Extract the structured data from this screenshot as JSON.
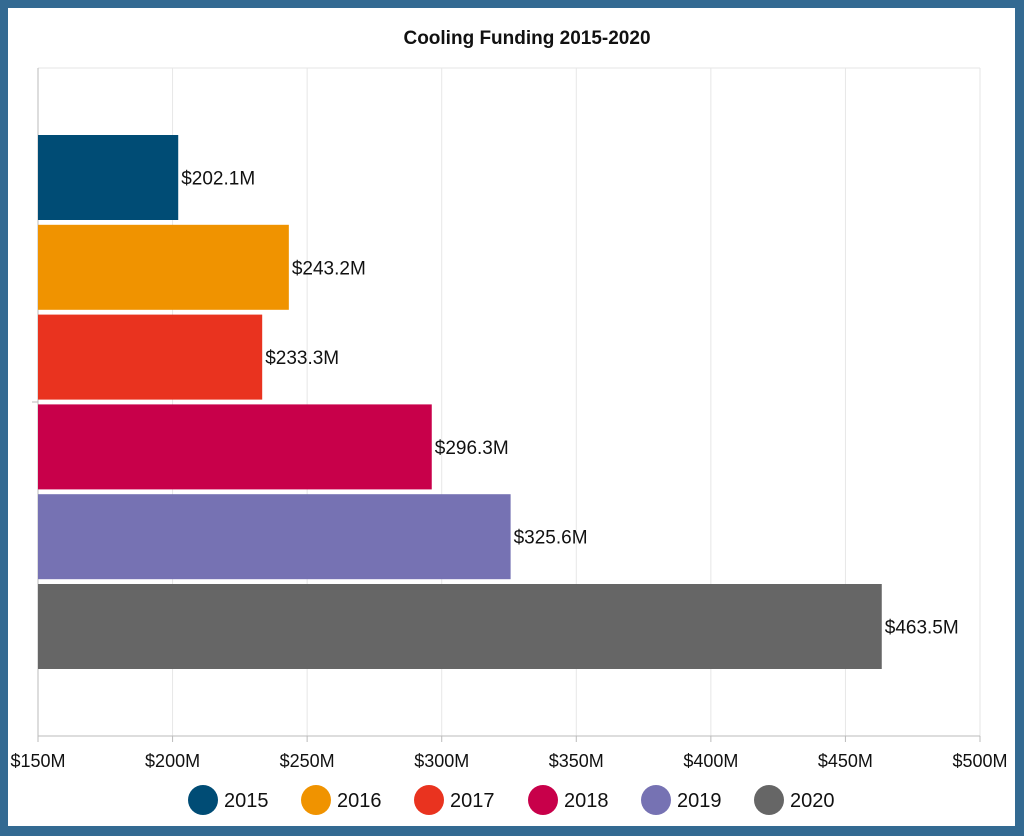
{
  "chart_data": {
    "type": "bar",
    "orientation": "horizontal",
    "title": "Cooling Funding 2015-2020",
    "categories": [
      "2015",
      "2016",
      "2017",
      "2018",
      "2019",
      "2020"
    ],
    "values": [
      202.1,
      243.2,
      233.3,
      296.3,
      325.6,
      463.5
    ],
    "data_labels": [
      "$202.1M",
      "$243.2M",
      "$233.3M",
      "$296.3M",
      "$325.6M",
      "$463.5M"
    ],
    "colors": [
      "#004c75",
      "#f09300",
      "#e9331f",
      "#c8004a",
      "#7672b3",
      "#666666"
    ],
    "xlim": [
      150,
      500
    ],
    "xticks": [
      150,
      200,
      250,
      300,
      350,
      400,
      450,
      500
    ],
    "xtick_labels": [
      "$150M",
      "$200M",
      "$250M",
      "$300M",
      "$350M",
      "$400M",
      "$450M",
      "$500M"
    ],
    "xlabel": "",
    "ylabel": "",
    "grid": true,
    "legend": {
      "placement": "bottom",
      "entries": [
        "2015",
        "2016",
        "2017",
        "2018",
        "2019",
        "2020"
      ]
    },
    "frame_color": "#336a92"
  }
}
